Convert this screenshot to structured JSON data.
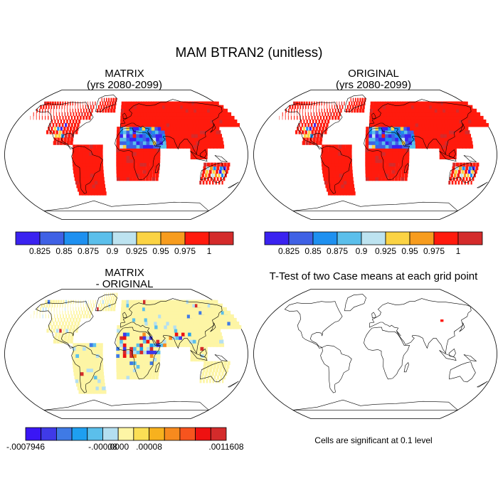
{
  "title": "MAM BTRAN2 (unitless)",
  "panels": [
    {
      "id": "top-left",
      "title_line1": "MATRIX",
      "title_line2": "(yrs 2080-2099)"
    },
    {
      "id": "top-right",
      "title_line1": "ORIGINAL",
      "title_line2": "(yrs 2080-2099)"
    },
    {
      "id": "bottom-left",
      "title_line1": "MATRIX",
      "title_line2": "- ORIGINAL"
    },
    {
      "id": "bottom-right",
      "title_line1": "T-Test of two Case means at each grid point",
      "title_line2": ""
    }
  ],
  "significance_note": "Cells are significant at 0.1 level",
  "colorbar_main": {
    "colors": [
      "#3a22f0",
      "#3f61e5",
      "#1e90f0",
      "#5bbfeb",
      "#bde3f0",
      "#fbd344",
      "#f79c1e",
      "#ff1a0d",
      "#d42b2b"
    ],
    "tick_labels": [
      "0.825",
      "0.85",
      "0.875",
      "0.9",
      "0.925",
      "0.95",
      "0.975",
      "1"
    ]
  },
  "colorbar_diff": {
    "colors": [
      "#3a16f5",
      "#3f3ae8",
      "#3f7ae5",
      "#1e9ff0",
      "#5bbfeb",
      "#b4dff0",
      "#fdf5a5",
      "#fbdf55",
      "#f7b11e",
      "#f78a1e",
      "#f7541e",
      "#ee1111",
      "#d42b2b"
    ],
    "tick_labels": [
      "-.0007946",
      "-.00008",
      ".0000",
      ".00008",
      ".0011608"
    ]
  },
  "colors": {
    "land_dry": "#ff1a0d",
    "land_diff_background": "#fdf5a5",
    "coastline": "#000000",
    "significant_cell": "#ff1a0d"
  }
}
